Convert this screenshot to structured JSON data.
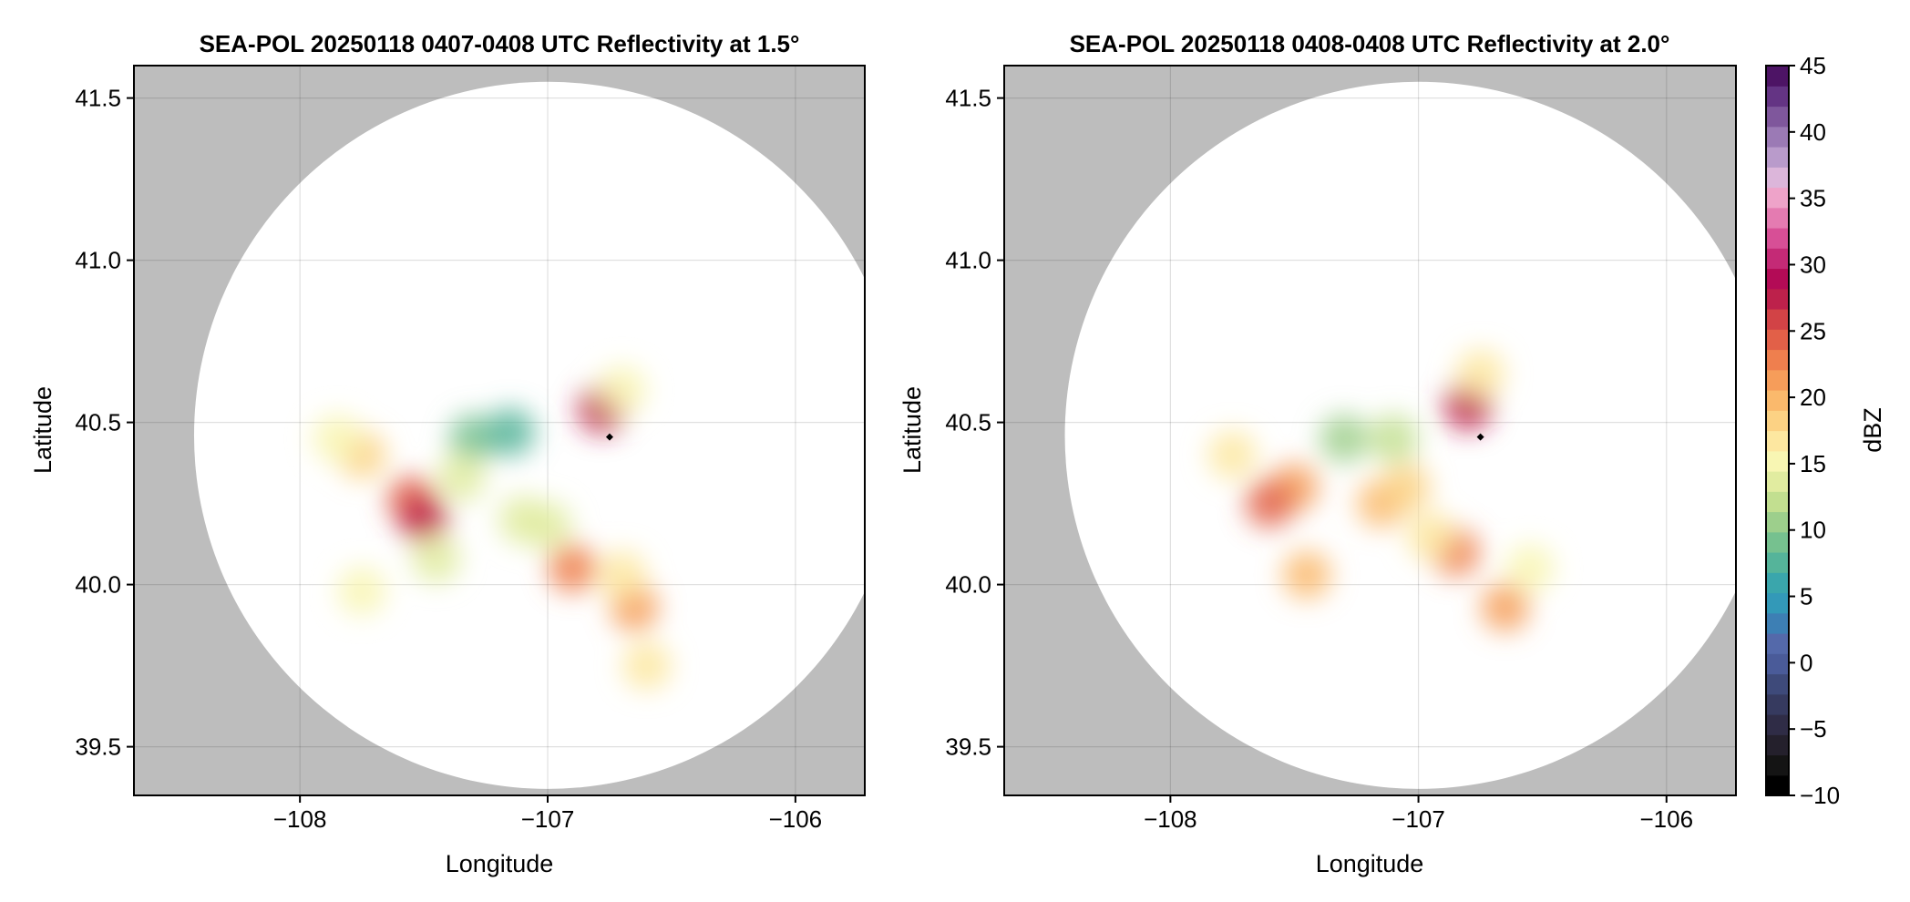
{
  "chart_data": [
    {
      "type": "heatmap",
      "title": "SEA-POL 20250118 0407-0408 UTC Reflectivity at 1.5°",
      "xlabel": "Longitude",
      "ylabel": "Latitude",
      "xlim": [
        -108.67,
        -105.72
      ],
      "ylim": [
        39.35,
        41.6
      ],
      "xticks": [
        -108,
        -107,
        -106
      ],
      "xtick_labels": [
        "−108",
        "−107",
        "−106"
      ],
      "yticks": [
        39.5,
        40.0,
        40.5,
        41.0,
        41.5
      ],
      "ytick_labels": [
        "39.5",
        "40.0",
        "40.5",
        "41.0",
        "41.5"
      ],
      "grid": true,
      "background_color": "#bdbdbd",
      "coverage": {
        "center_lon": -107.0,
        "center_lat": 40.46,
        "radius_deg_lat": 1.09
      },
      "radar_marker": {
        "lon": -106.75,
        "lat": 40.455
      },
      "echo_cells": [
        {
          "lon": -107.3,
          "lat": 40.45,
          "dbz": 9
        },
        {
          "lon": -107.35,
          "lat": 40.33,
          "dbz": 14
        },
        {
          "lon": -107.55,
          "lat": 40.26,
          "dbz": 24
        },
        {
          "lon": -107.5,
          "lat": 40.2,
          "dbz": 27
        },
        {
          "lon": -107.75,
          "lat": 40.4,
          "dbz": 18
        },
        {
          "lon": -107.85,
          "lat": 40.45,
          "dbz": 15
        },
        {
          "lon": -107.1,
          "lat": 40.2,
          "dbz": 13
        },
        {
          "lon": -107.0,
          "lat": 40.18,
          "dbz": 13
        },
        {
          "lon": -107.15,
          "lat": 40.47,
          "dbz": 8
        },
        {
          "lon": -106.78,
          "lat": 40.54,
          "dbz": 28
        },
        {
          "lon": -106.7,
          "lat": 40.6,
          "dbz": 15
        },
        {
          "lon": -106.9,
          "lat": 40.05,
          "dbz": 23
        },
        {
          "lon": -106.65,
          "lat": 39.93,
          "dbz": 22
        },
        {
          "lon": -106.7,
          "lat": 40.03,
          "dbz": 16
        },
        {
          "lon": -107.45,
          "lat": 40.08,
          "dbz": 14
        },
        {
          "lon": -107.75,
          "lat": 39.98,
          "dbz": 15
        },
        {
          "lon": -106.6,
          "lat": 39.75,
          "dbz": 16
        }
      ]
    },
    {
      "type": "heatmap",
      "title": "SEA-POL 20250118 0408-0408 UTC Reflectivity at 2.0°",
      "xlabel": "Longitude",
      "ylabel": "Latitude",
      "xlim": [
        -108.67,
        -105.72
      ],
      "ylim": [
        39.35,
        41.6
      ],
      "xticks": [
        -108,
        -107,
        -106
      ],
      "xtick_labels": [
        "−108",
        "−107",
        "−106"
      ],
      "yticks": [
        39.5,
        40.0,
        40.5,
        41.0,
        41.5
      ],
      "ytick_labels": [
        "39.5",
        "40.0",
        "40.5",
        "41.0",
        "41.5"
      ],
      "grid": true,
      "background_color": "#bdbdbd",
      "coverage": {
        "center_lon": -107.0,
        "center_lat": 40.46,
        "radius_deg_lat": 1.09
      },
      "radar_marker": {
        "lon": -106.75,
        "lat": 40.455
      },
      "echo_cells": [
        {
          "lon": -107.3,
          "lat": 40.45,
          "dbz": 11
        },
        {
          "lon": -107.5,
          "lat": 40.3,
          "dbz": 22
        },
        {
          "lon": -107.6,
          "lat": 40.25,
          "dbz": 24
        },
        {
          "lon": -107.75,
          "lat": 40.4,
          "dbz": 17
        },
        {
          "lon": -107.15,
          "lat": 40.25,
          "dbz": 20
        },
        {
          "lon": -107.05,
          "lat": 40.3,
          "dbz": 18
        },
        {
          "lon": -107.1,
          "lat": 40.45,
          "dbz": 12
        },
        {
          "lon": -106.8,
          "lat": 40.55,
          "dbz": 28
        },
        {
          "lon": -106.75,
          "lat": 40.65,
          "dbz": 16
        },
        {
          "lon": -106.85,
          "lat": 40.1,
          "dbz": 23
        },
        {
          "lon": -106.65,
          "lat": 39.93,
          "dbz": 22
        },
        {
          "lon": -106.95,
          "lat": 40.15,
          "dbz": 16
        },
        {
          "lon": -107.45,
          "lat": 40.03,
          "dbz": 20
        },
        {
          "lon": -106.55,
          "lat": 40.05,
          "dbz": 15
        }
      ]
    }
  ],
  "colorbar": {
    "label": "dBZ",
    "min": -10,
    "max": 45,
    "ticks": [
      -10,
      -5,
      0,
      5,
      10,
      15,
      20,
      25,
      30,
      35,
      40,
      45
    ],
    "tick_labels": [
      "−10",
      "−5",
      "0",
      "5",
      "10",
      "15",
      "20",
      "25",
      "30",
      "35",
      "40",
      "45"
    ],
    "colors": [
      "#000000",
      "#141414",
      "#24202c",
      "#2f2c46",
      "#363a5f",
      "#3e4a7a",
      "#4a5b99",
      "#5469aa",
      "#3d7fb4",
      "#3399b8",
      "#3aa6ac",
      "#55b49a",
      "#76c18f",
      "#9dcf8c",
      "#c2df90",
      "#e1eca0",
      "#f8f6b3",
      "#fde7a0",
      "#fcd284",
      "#fab96c",
      "#f69d5a",
      "#ef7f4e",
      "#e26048",
      "#d24346",
      "#bd214b",
      "#b30b56",
      "#c42a76",
      "#d74f96",
      "#e47bb1",
      "#eea3c9",
      "#dcb6da",
      "#b99bcb",
      "#9b7ab5",
      "#7f579c",
      "#643484",
      "#4d1465"
    ]
  }
}
